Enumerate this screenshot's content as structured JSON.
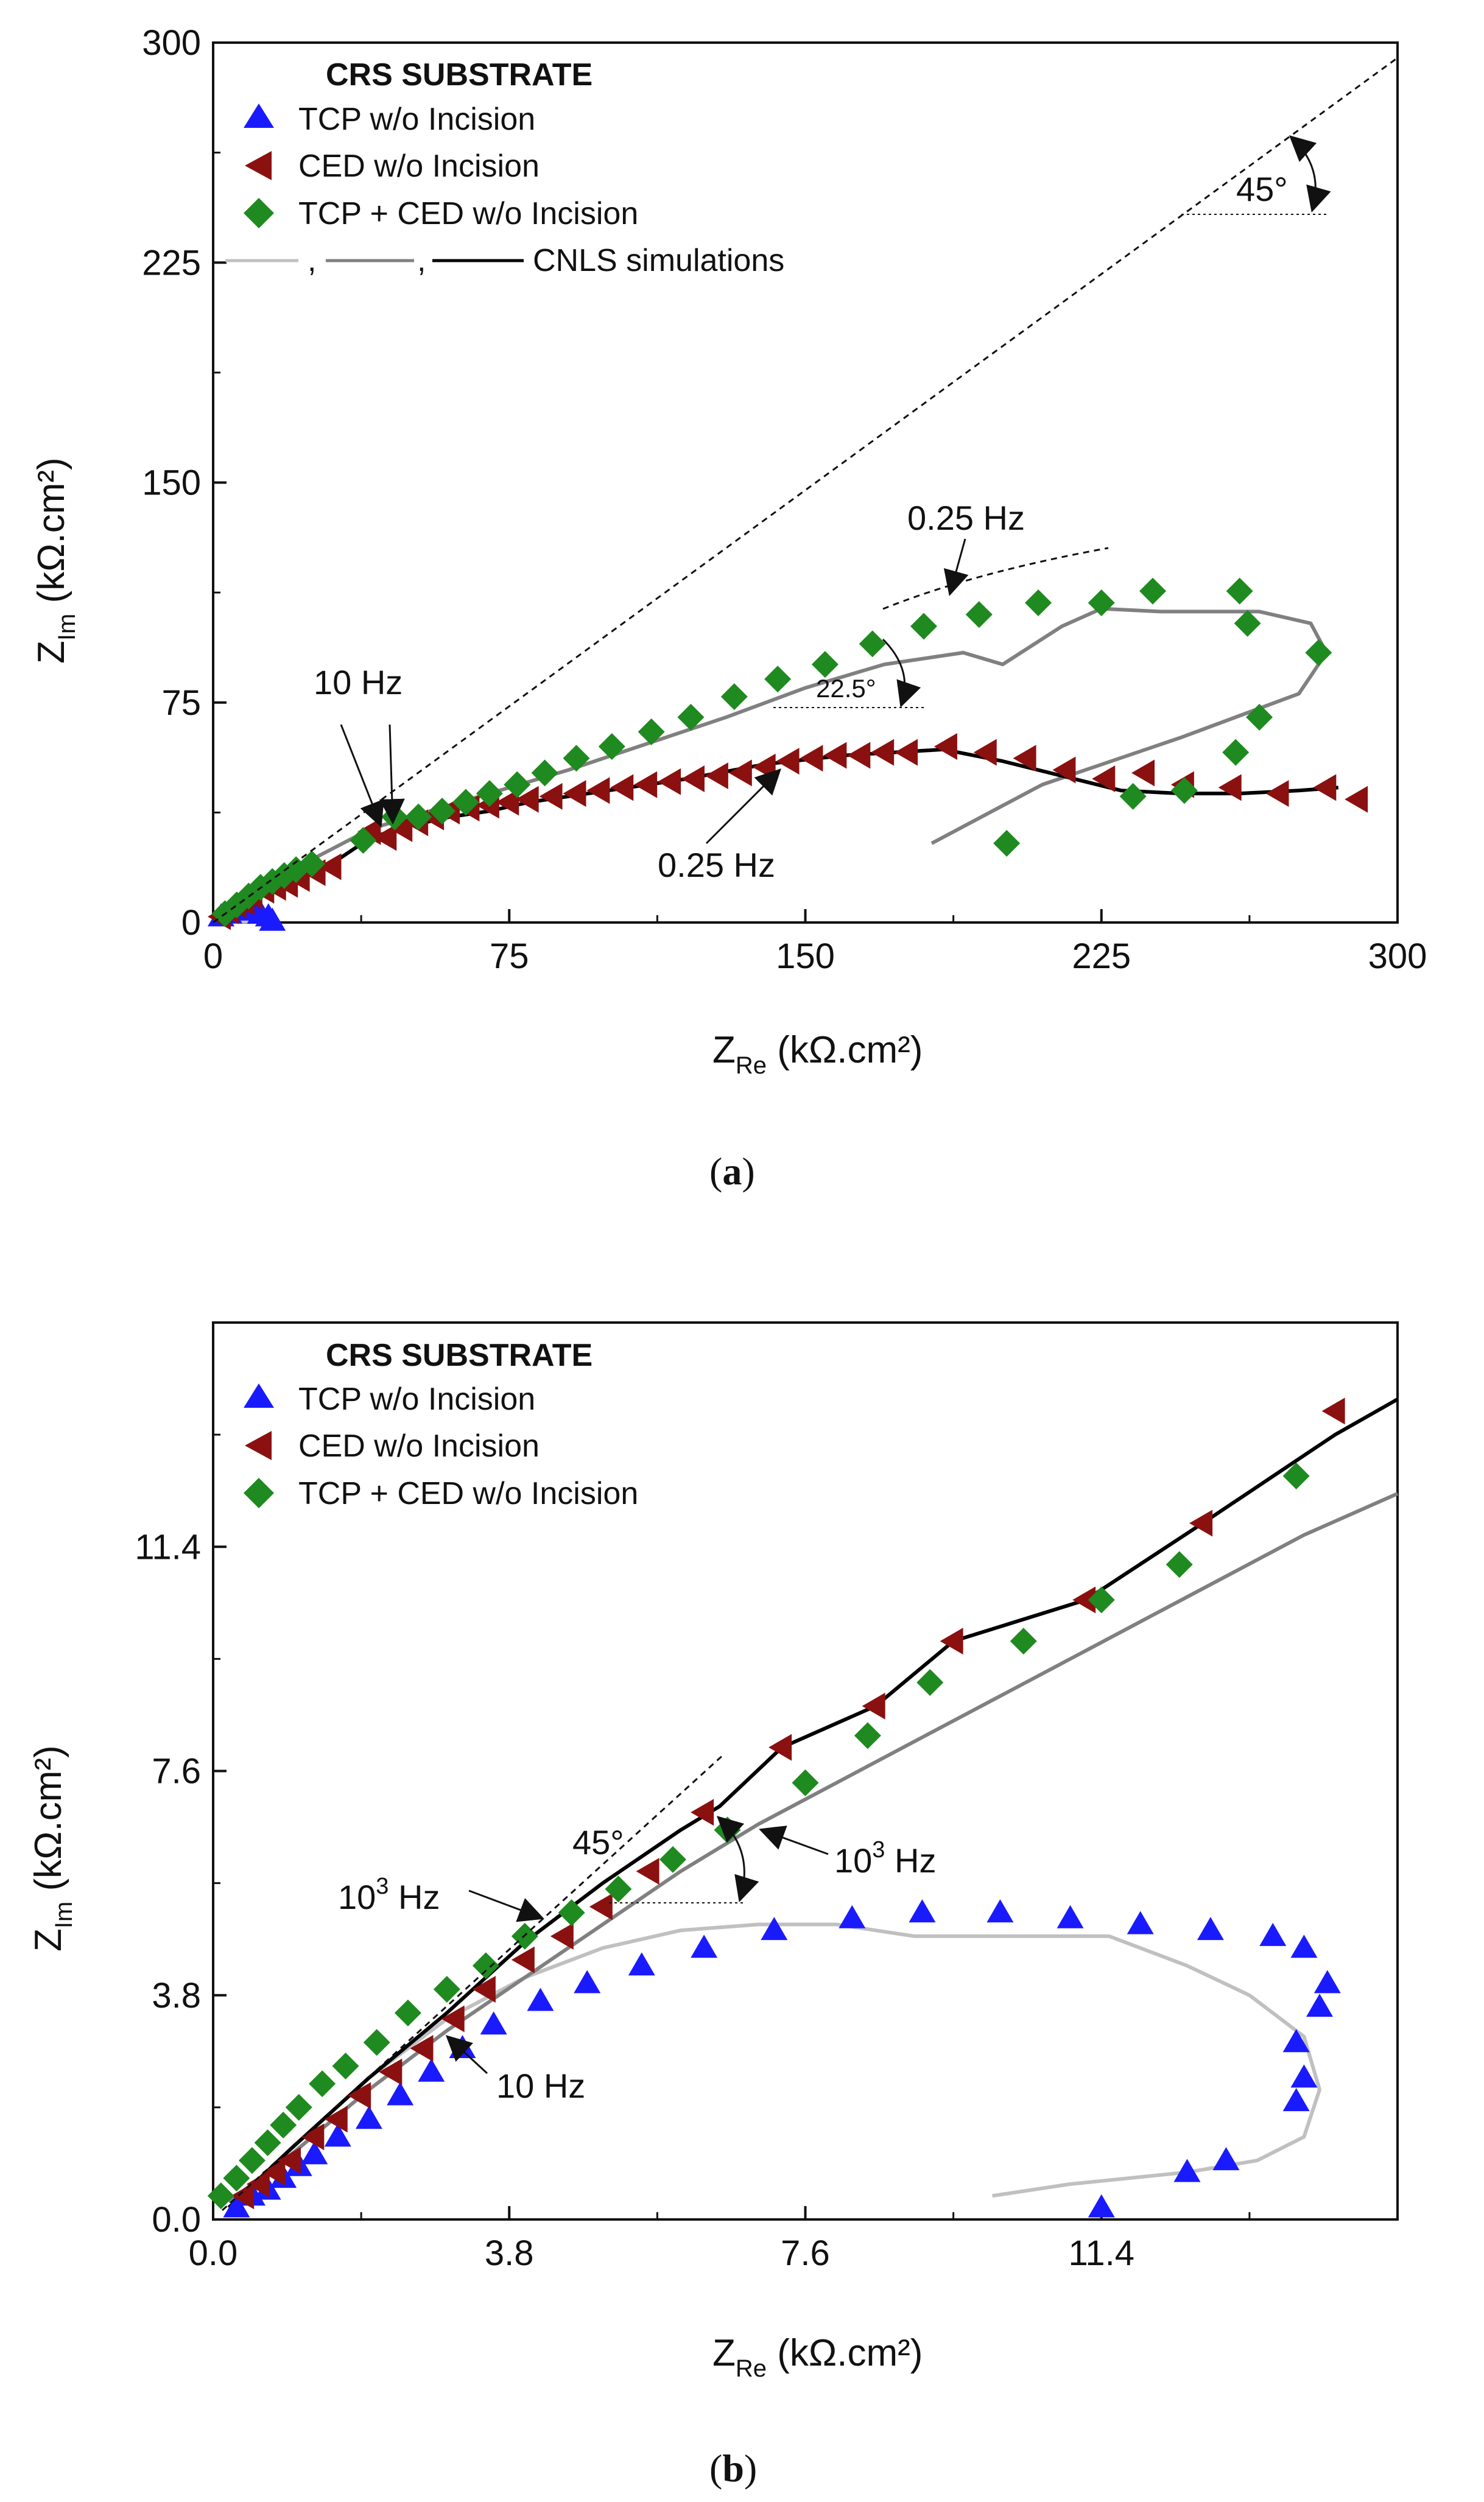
{
  "colors": {
    "tcp": "#1a1aff",
    "ced": "#8b1010",
    "tcp_ced": "#1f8a1f",
    "sim_light": "#c0c0c0",
    "sim_mid": "#808080",
    "sim_dark": "#000000"
  },
  "chart_data": [
    {
      "type": "scatter",
      "panel": "a",
      "panel_label": {
        "open": "(",
        "letter": "a",
        "close": ")"
      },
      "xlabel": {
        "main": "Z",
        "sub": "Re",
        "unit": " (kΩ.cm²)"
      },
      "ylabel": {
        "main": "Z",
        "sub": "Im",
        "unit": " (kΩ.cm²)"
      },
      "xlim": [
        0,
        300
      ],
      "ylim": [
        0,
        300
      ],
      "xticks": [
        "0",
        "75",
        "150",
        "225",
        "300"
      ],
      "yticks": [
        "0",
        "75",
        "150",
        "225",
        "300"
      ],
      "legend": {
        "title": "CRS SUBSTRATE",
        "entries": [
          "TCP w/o Incision",
          "CED w/o Incision",
          "TCP + CED w/o Incision"
        ],
        "sim_separators": [
          ",",
          ","
        ],
        "sim_label": "CNLS simulations"
      },
      "annotations": {
        "hz_top": "0.25 Hz",
        "hz_bottom": "0.25 Hz",
        "hz_left": "10 Hz",
        "angle_45": "45°",
        "angle_22": "22.5°"
      },
      "series": [
        {
          "name": "TCP w/o Incision",
          "marker": "triangle-up",
          "color_key": "tcp",
          "x": [
            2,
            4,
            6,
            8,
            10,
            12,
            14,
            15
          ],
          "y": [
            2,
            3,
            4,
            4.5,
            4,
            3,
            2,
            0.5
          ]
        },
        {
          "name": "CED w/o Incision",
          "marker": "triangle-left",
          "color_key": "ced",
          "x": [
            2,
            4,
            6,
            8,
            10,
            13,
            16,
            19,
            22,
            26,
            30,
            40,
            44,
            48,
            52,
            56,
            60,
            65,
            70,
            75,
            80,
            86,
            92,
            98,
            104,
            110,
            116,
            122,
            128,
            134,
            140,
            146,
            152,
            158,
            164,
            170,
            176,
            186,
            196,
            206,
            216,
            226,
            236,
            246,
            258,
            270,
            282,
            290
          ],
          "y": [
            2,
            4,
            6,
            7,
            9,
            11,
            12,
            13,
            15,
            17,
            19,
            31,
            29,
            32,
            34,
            36,
            38,
            39,
            40,
            41,
            42,
            43,
            44,
            45,
            46,
            47,
            48,
            49,
            50,
            51,
            53,
            55,
            56,
            57,
            57,
            58,
            58,
            60,
            58,
            56,
            52,
            49,
            51,
            47,
            46,
            44,
            46,
            42
          ]
        },
        {
          "name": "TCP + CED w/o Incision",
          "marker": "diamond",
          "color_key": "tcp_ced",
          "x": [
            3,
            6,
            9,
            12,
            15,
            18,
            21,
            25,
            38,
            46,
            52,
            58,
            64,
            70,
            77,
            84,
            92,
            101,
            111,
            121,
            132,
            143,
            155,
            167,
            180,
            194,
            209,
            225,
            238,
            260,
            262,
            265,
            280,
            259,
            246,
            233,
            201
          ],
          "y": [
            3,
            6,
            9,
            12,
            14,
            16,
            18,
            20,
            28,
            36,
            36,
            38,
            41,
            44,
            47,
            51,
            56,
            60,
            65,
            70,
            77,
            83,
            88,
            95,
            101,
            105,
            109,
            109,
            113,
            113,
            102,
            70,
            92,
            58,
            45,
            43,
            27
          ]
        },
        {
          "name": "CNLS TCP",
          "style": "line",
          "color_key": "sim_light",
          "x": [
            0,
            3,
            6,
            9,
            12,
            14,
            14,
            12,
            8,
            4,
            0
          ],
          "y": [
            0,
            2.5,
            4.5,
            5,
            4.2,
            3,
            1.5,
            0.5,
            0.3,
            0.2,
            0
          ]
        },
        {
          "name": "CNLS TCP + CED",
          "style": "line",
          "color_key": "sim_mid",
          "x": [
            0,
            10,
            20,
            30,
            40,
            55,
            70,
            90,
            110,
            130,
            150,
            170,
            190,
            200,
            215,
            225,
            240,
            265,
            278,
            282,
            275,
            245,
            210,
            182
          ],
          "y": [
            0,
            10,
            18,
            25,
            32,
            38,
            44,
            52,
            61,
            70,
            80,
            88,
            92,
            88,
            101,
            107,
            106,
            106,
            102,
            92,
            78,
            63,
            47,
            27
          ]
        },
        {
          "name": "CNLS CED",
          "style": "line",
          "color_key": "sim_dark",
          "x": [
            0,
            5,
            10,
            15,
            20,
            25,
            30,
            40,
            50,
            60,
            70,
            80,
            100,
            120,
            140,
            160,
            185,
            200,
            215,
            230,
            245,
            260,
            275,
            285
          ],
          "y": [
            0,
            5,
            9,
            12,
            15,
            18,
            20,
            29,
            33,
            36,
            38,
            41,
            45,
            49,
            54,
            57,
            59,
            55,
            50,
            45,
            44,
            44,
            45,
            46
          ]
        }
      ]
    },
    {
      "type": "scatter",
      "panel": "b",
      "panel_label": {
        "open": "(",
        "letter": "b",
        "close": ")"
      },
      "xlabel": {
        "main": "Z",
        "sub": "Re",
        "unit": " (kΩ.cm²)"
      },
      "ylabel": {
        "main": "Z",
        "sub": "Im",
        "unit": " (kΩ.cm²)"
      },
      "xlim": [
        0,
        15.2
      ],
      "ylim": [
        0,
        15.2
      ],
      "xticks": [
        "0.0",
        "3.8",
        "7.6",
        "11.4"
      ],
      "yticks": [
        "0.0",
        "3.8",
        "7.6",
        "11.4"
      ],
      "legend": {
        "title": "CRS SUBSTRATE",
        "entries": [
          "TCP w/o Incision",
          "CED w/o Incision",
          "TCP + CED w/o Incision"
        ]
      },
      "annotations": {
        "hz_right_base": "10",
        "hz_right_sup": "3",
        "hz_right_unit": " Hz",
        "hz_left_base": "10",
        "hz_left_sup": "3",
        "hz_left_unit": " Hz",
        "hz_low": "10 Hz",
        "angle_45": "45°"
      },
      "series": [
        {
          "name": "TCP w/o Incision",
          "marker": "triangle-up",
          "color_key": "tcp",
          "x": [
            0.3,
            0.5,
            0.7,
            0.9,
            1.1,
            1.3,
            1.6,
            2.0,
            2.4,
            2.8,
            3.2,
            3.6,
            4.2,
            4.8,
            5.5,
            6.3,
            7.2,
            8.2,
            9.1,
            10.1,
            11.0,
            11.9,
            12.8,
            13.6,
            14.0,
            14.3,
            14.2,
            13.9,
            14.0,
            13.9,
            13.0,
            12.5,
            11.4
          ],
          "y": [
            0.2,
            0.4,
            0.5,
            0.7,
            0.9,
            1.1,
            1.4,
            1.7,
            2.1,
            2.5,
            2.9,
            3.3,
            3.7,
            4.0,
            4.3,
            4.6,
            4.9,
            5.1,
            5.2,
            5.2,
            5.1,
            5.0,
            4.9,
            4.8,
            4.6,
            4.0,
            3.6,
            3.0,
            2.4,
            2.0,
            1.0,
            0.8,
            0.2
          ]
        },
        {
          "name": "CED w/o Incision",
          "marker": "triangle-left",
          "color_key": "ced",
          "x": [
            0.4,
            0.6,
            0.8,
            1.0,
            1.3,
            1.6,
            1.9,
            2.3,
            2.7,
            3.1,
            3.5,
            4.0,
            4.5,
            5.0,
            5.6,
            6.3,
            7.3,
            8.5,
            9.5,
            11.2,
            12.7,
            14.4
          ],
          "y": [
            0.4,
            0.6,
            0.8,
            1.0,
            1.4,
            1.7,
            2.1,
            2.5,
            2.9,
            3.4,
            3.9,
            4.4,
            4.8,
            5.3,
            5.9,
            6.9,
            8.0,
            8.7,
            9.8,
            10.5,
            11.8,
            13.7
          ]
        },
        {
          "name": "TCP + CED w/o Incision",
          "marker": "diamond",
          "color_key": "tcp_ced",
          "x": [
            0.1,
            0.3,
            0.5,
            0.7,
            0.9,
            1.1,
            1.4,
            1.7,
            2.1,
            2.5,
            3.0,
            3.5,
            4.0,
            4.6,
            5.2,
            5.9,
            6.6,
            7.6,
            8.4,
            9.2,
            10.4,
            11.4,
            12.4,
            13.9
          ],
          "y": [
            0.4,
            0.7,
            1.0,
            1.3,
            1.6,
            1.9,
            2.3,
            2.6,
            3.0,
            3.5,
            3.9,
            4.3,
            4.8,
            5.2,
            5.6,
            6.1,
            6.6,
            7.4,
            8.2,
            9.1,
            9.8,
            10.5,
            11.1,
            12.6
          ]
        },
        {
          "name": "CNLS TCP",
          "style": "line",
          "color_key": "sim_light",
          "x": [
            0.2,
            1.0,
            2.0,
            3.0,
            4.0,
            5.0,
            6.0,
            7.0,
            8.0,
            9.0,
            10.0,
            11.0,
            11.5,
            12.5,
            13.3,
            14.0,
            14.2,
            14.0,
            13.4,
            12.5,
            11.0,
            10.0
          ],
          "y": [
            0.1,
            1.2,
            2.4,
            3.4,
            4.1,
            4.6,
            4.9,
            5.0,
            5.0,
            4.8,
            4.8,
            4.8,
            4.8,
            4.3,
            3.8,
            3.1,
            2.2,
            1.4,
            1.0,
            0.8,
            0.6,
            0.4
          ]
        },
        {
          "name": "CNLS TCP + CED",
          "style": "line",
          "color_key": "sim_mid",
          "x": [
            0.2,
            1.0,
            2.0,
            3.0,
            4.0,
            5.0,
            6.0,
            7.0,
            8.0,
            9.0,
            10.0,
            11.0,
            12.0,
            13.0,
            14.0,
            15.2
          ],
          "y": [
            0.3,
            1.1,
            2.2,
            3.2,
            4.1,
            5.0,
            5.9,
            6.7,
            7.4,
            8.1,
            8.8,
            9.5,
            10.2,
            10.9,
            11.6,
            12.3
          ]
        },
        {
          "name": "CNLS CED",
          "style": "line",
          "color_key": "sim_dark",
          "x": [
            0.2,
            1.0,
            2.0,
            3.0,
            4.0,
            5.0,
            6.0,
            6.5,
            7.3,
            8.5,
            9.5,
            11.2,
            12.7,
            14.4,
            15.2
          ],
          "y": [
            0.2,
            1.2,
            2.4,
            3.5,
            4.7,
            5.7,
            6.6,
            7.0,
            8.0,
            8.7,
            9.8,
            10.5,
            11.8,
            13.3,
            13.9
          ]
        }
      ]
    }
  ]
}
